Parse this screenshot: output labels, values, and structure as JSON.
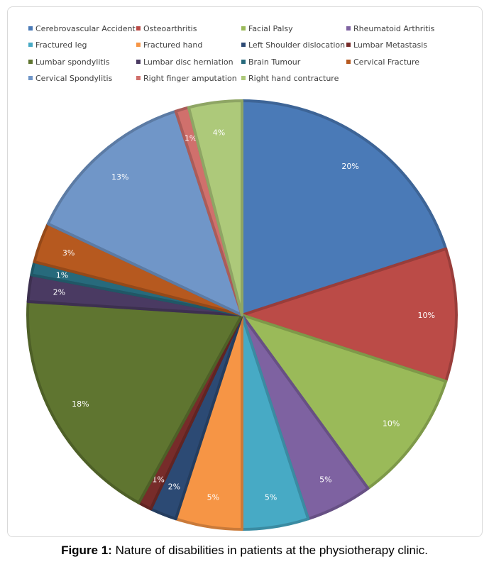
{
  "chart_data": {
    "type": "pie",
    "series": [
      {
        "name": "Cerebrovascular Accident",
        "value": 20,
        "label": "20%",
        "color": "#4a7ab7"
      },
      {
        "name": "Osteoarthritis",
        "value": 10,
        "label": "10%",
        "color": "#bb4b47"
      },
      {
        "name": "Facial Palsy",
        "value": 10,
        "label": "10%",
        "color": "#9aba59"
      },
      {
        "name": "Rheumatoid Arthritis",
        "value": 5,
        "label": "5%",
        "color": "#7e62a1"
      },
      {
        "name": "Fractured leg",
        "value": 5,
        "label": "5%",
        "color": "#47aac5"
      },
      {
        "name": "Fractured hand",
        "value": 5,
        "label": "5%",
        "color": "#f69545"
      },
      {
        "name": "Left Shoulder dislocation",
        "value": 2,
        "label": "2%",
        "color": "#2c4a74"
      },
      {
        "name": "Lumbar Metastasis",
        "value": 1,
        "label": "1%",
        "color": "#772c2a"
      },
      {
        "name": "Lumbar spondylitis",
        "value": 18,
        "label": "18%",
        "color": "#5f7530"
      },
      {
        "name": "Lumbar disc herniation",
        "value": 2,
        "label": "2%",
        "color": "#4a3a62"
      },
      {
        "name": "Brain Tumour",
        "value": 1,
        "label": "1%",
        "color": "#276a7c"
      },
      {
        "name": "Cervical Fracture",
        "value": 3,
        "label": "3%",
        "color": "#b6591f"
      },
      {
        "name": "Cervical Spondylitis",
        "value": 13,
        "label": "13%",
        "color": "#7096c8"
      },
      {
        "name": "Right finger amputation",
        "value": 1,
        "label": "1%",
        "color": "#d0706c"
      },
      {
        "name": "Right hand contracture",
        "value": 4,
        "label": "4%",
        "color": "#adc97a"
      }
    ],
    "legend_position": "top"
  },
  "caption": {
    "label": "Figure 1:",
    "text": " Nature of disabilities in patients at the physiotherapy clinic."
  }
}
